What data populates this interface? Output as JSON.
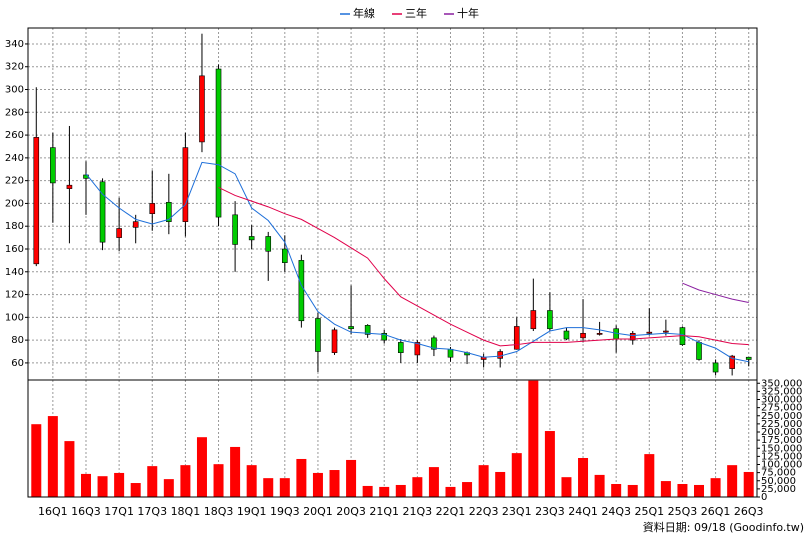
{
  "chart_data": [
    {
      "type": "candlestick",
      "up_color": "#ff0000",
      "down_color": "#00cc00",
      "open": [
        147,
        249,
        213,
        225,
        219,
        170,
        179,
        191,
        201,
        184,
        254,
        318,
        190,
        171,
        171,
        160,
        150,
        99,
        69,
        92,
        93,
        86,
        78,
        67,
        82,
        72,
        69,
        63,
        64,
        72,
        90,
        106,
        88,
        82,
        85,
        90,
        80,
        86,
        87,
        91,
        78,
        60,
        55,
        65
      ],
      "high": [
        302,
        262,
        268,
        237,
        222,
        205,
        190,
        229,
        226,
        262,
        349,
        322,
        202,
        181,
        175,
        172,
        155,
        104,
        91,
        128,
        94,
        89,
        81,
        80,
        84,
        74,
        70,
        68,
        72,
        100,
        134,
        122,
        91,
        116,
        96,
        93,
        88,
        108,
        98,
        92,
        80,
        63,
        67,
        65
      ],
      "low": [
        145,
        183,
        165,
        190,
        159,
        158,
        165,
        176,
        173,
        171,
        245,
        180,
        140,
        160,
        132,
        140,
        91,
        52,
        67,
        85,
        82,
        77,
        60,
        60,
        66,
        61,
        59,
        56,
        56,
        72,
        88,
        88,
        80,
        78,
        84,
        69,
        76,
        84,
        84,
        75,
        62,
        49,
        49,
        57
      ],
      "close": [
        258,
        218,
        216,
        222,
        166,
        178,
        184,
        200,
        184,
        249,
        312,
        188,
        164,
        168,
        158,
        148,
        97,
        70,
        89,
        90,
        85,
        80,
        69,
        78,
        72,
        65,
        67,
        65,
        70,
        92,
        106,
        90,
        81,
        86,
        86,
        81,
        86,
        87,
        88,
        76,
        63,
        52,
        66,
        63
      ],
      "series": [
        {
          "name": "年線",
          "color": "#1e6fd9",
          "values": [
            null,
            null,
            null,
            226,
            208,
            196,
            186,
            182,
            186,
            199,
            236,
            234,
            226,
            196,
            185,
            166,
            128,
            105,
            94,
            87,
            86,
            85,
            80,
            77,
            73,
            72,
            69,
            65,
            66,
            70,
            79,
            88,
            91,
            91,
            89,
            86,
            84,
            85,
            86,
            85,
            78,
            73,
            64,
            61
          ]
        },
        {
          "name": "三年",
          "color": "#e0004a",
          "values": [
            null,
            null,
            null,
            null,
            null,
            null,
            null,
            null,
            null,
            null,
            null,
            214,
            207,
            202,
            197,
            191,
            186,
            178,
            170,
            161,
            152,
            134,
            118,
            110,
            102,
            94,
            87,
            80,
            75,
            76,
            78,
            78,
            78,
            79,
            80,
            81,
            81,
            82,
            83,
            84,
            83,
            80,
            77,
            76
          ]
        },
        {
          "name": "十年",
          "color": "#8a1fa0",
          "values": [
            null,
            null,
            null,
            null,
            null,
            null,
            null,
            null,
            null,
            null,
            null,
            null,
            null,
            null,
            null,
            null,
            null,
            null,
            null,
            null,
            null,
            null,
            null,
            null,
            null,
            null,
            null,
            null,
            null,
            null,
            null,
            null,
            null,
            null,
            null,
            null,
            null,
            null,
            null,
            130,
            124,
            120,
            116,
            113
          ]
        }
      ],
      "ylim": [
        45,
        354
      ],
      "yticks": [
        60,
        80,
        100,
        120,
        140,
        160,
        180,
        200,
        220,
        240,
        260,
        280,
        300,
        320,
        340
      ],
      "grid": true
    },
    {
      "type": "bar",
      "color": "#ff0000",
      "categories": [
        null,
        "16Q1",
        null,
        "16Q3",
        null,
        "17Q1",
        null,
        "17Q3",
        null,
        "18Q1",
        null,
        "18Q3",
        null,
        "19Q1",
        null,
        "19Q3",
        null,
        "20Q1",
        null,
        "20Q3",
        null,
        "21Q1",
        null,
        "21Q3",
        null,
        "22Q1",
        null,
        "22Q3",
        null,
        "23Q1",
        null,
        "23Q3",
        null,
        "24Q1",
        null,
        "24Q3",
        null,
        "25Q1",
        null,
        "25Q3",
        null,
        "26Q1",
        null,
        "26Q3"
      ],
      "values": [
        224000,
        249000,
        172000,
        71000,
        64000,
        74000,
        43000,
        95000,
        55000,
        98000,
        184000,
        101000,
        154000,
        98000,
        58000,
        58000,
        117000,
        74000,
        83000,
        114000,
        34000,
        31000,
        37000,
        61000,
        92000,
        31000,
        46000,
        98000,
        77000,
        135000,
        358000,
        203000,
        61000,
        120000,
        68000,
        40000,
        37000,
        132000,
        49000,
        40000,
        37000,
        58000,
        98000,
        77000
      ],
      "ylim": [
        0,
        360000
      ],
      "yticks": [
        0,
        {
          "value": 25000,
          "label": "25,000"
        },
        {
          "value": 50000,
          "label": "50,000"
        },
        {
          "value": 75000,
          "label": "75,000"
        },
        {
          "value": 100000,
          "label": "100,000"
        },
        {
          "value": 125000,
          "label": "125,000"
        },
        {
          "value": 150000,
          "label": "150,000"
        },
        {
          "value": 175000,
          "label": "175,000"
        },
        {
          "value": 200000,
          "label": "200,000"
        },
        {
          "value": 225000,
          "label": "225,000"
        },
        {
          "value": 250000,
          "label": "250,000"
        },
        {
          "value": 275000,
          "label": "275,000"
        },
        {
          "value": 300000,
          "label": "300,000"
        },
        {
          "value": 325000,
          "label": "325,000"
        },
        {
          "value": 350000,
          "label": "350,000"
        }
      ],
      "grid": true
    }
  ],
  "footer": "資料日期: 09/18 (Goodinfo.tw)"
}
